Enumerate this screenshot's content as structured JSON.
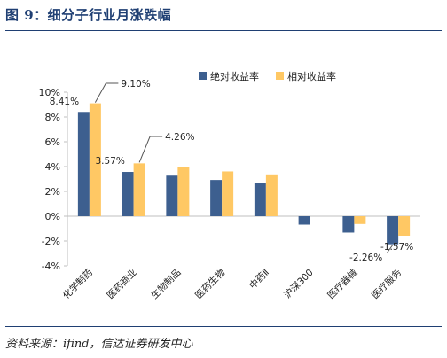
{
  "figure": {
    "title": "图 9：细分子行业月涨跌幅",
    "source": "资料来源：ifind，信达证券研发中心"
  },
  "colors": {
    "absolute": "#3d5f8f",
    "relative": "#ffc864",
    "axis": "#bfbfbf",
    "text": "#222222",
    "title": "#1f3f73"
  },
  "chart_data": {
    "type": "bar",
    "categories": [
      "化学制药",
      "医药商业",
      "生物制品",
      "医药生物",
      "中药Ⅱ",
      "沪深300",
      "医疗器械",
      "医疗服务"
    ],
    "series": [
      {
        "name": "绝对收益率",
        "values": [
          8.41,
          3.57,
          3.27,
          2.92,
          2.68,
          -0.68,
          -1.32,
          -2.26
        ]
      },
      {
        "name": "相对收益率",
        "values": [
          9.1,
          4.26,
          3.96,
          3.61,
          3.37,
          0.0,
          -0.63,
          -1.57
        ]
      }
    ],
    "ylim": [
      -4,
      10
    ],
    "yticks": [
      "-4%",
      "-2%",
      "0%",
      "2%",
      "4%",
      "6%",
      "8%",
      "10%"
    ],
    "legend": "top",
    "grid": false,
    "annotations": [
      {
        "text": "8.41%",
        "category": "化学制药",
        "series": "绝对收益率"
      },
      {
        "text": "9.10%",
        "category": "化学制药",
        "series": "相对收益率"
      },
      {
        "text": "3.57%",
        "category": "医药商业",
        "series": "绝对收益率"
      },
      {
        "text": "4.26%",
        "category": "医药商业",
        "series": "相对收益率"
      },
      {
        "text": "-2.26%",
        "category": "医疗服务",
        "series": "绝对收益率"
      },
      {
        "text": "-1.57%",
        "category": "医疗服务",
        "series": "相对收益率"
      }
    ]
  }
}
